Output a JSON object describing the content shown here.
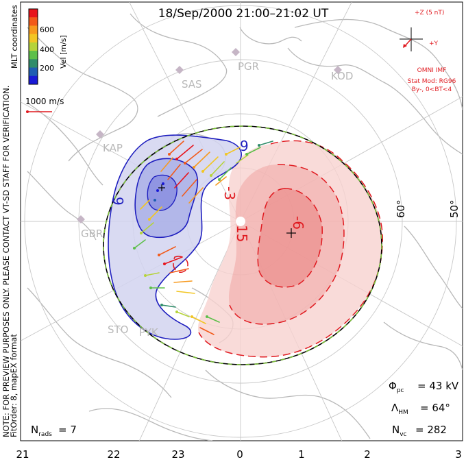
{
  "title": "18/Sep/2000 21:00–21:02 UT",
  "coordinates_label": "MLT coordinates",
  "colorbar": {
    "title": "Vel [m/s]",
    "ticks": [
      "600",
      "400",
      "200"
    ],
    "colors": [
      "#e8141c",
      "#f25a1a",
      "#f79a1f",
      "#f2c624",
      "#b6d33a",
      "#5dbf4a",
      "#2f8c6a",
      "#1f5db3",
      "#1a1ad6"
    ]
  },
  "velocity_scale": "1000 m/s",
  "side_notes": {
    "line1": "FitOrder: 8, mapEX format",
    "line2": "NOTE: FOR PREVIEW PURPOSES ONLY. PLEASE CONTACT VT-SD STAFF FOR VERIFICATION."
  },
  "imf": {
    "z_label": "+Z (5 nT)",
    "y_label": "+Y",
    "source": "OMNI IMF",
    "model": "Stat Mod: RG96",
    "condition": "By-, 0<BT<4"
  },
  "stations": [
    "PGR",
    "KOD",
    "SAS",
    "KAP",
    "GBR",
    "STO",
    "PYK"
  ],
  "latitude_labels": [
    "60°",
    "50°"
  ],
  "contour_labels": [
    "9",
    "-6",
    "-3",
    "15",
    "-3"
  ],
  "stats": {
    "phi_pc": "= 43 kV",
    "lambda_hm": "= 64°",
    "n_vc": "= 282",
    "n_rads": "= 7"
  },
  "mlt_axis": [
    "21",
    "22",
    "23",
    "0",
    "1",
    "2",
    "3"
  ],
  "colors": {
    "positive_cell": "#5a5ad2",
    "negative_cell": "#e23a3a",
    "heppner_maynard": "#7bbf3a"
  }
}
